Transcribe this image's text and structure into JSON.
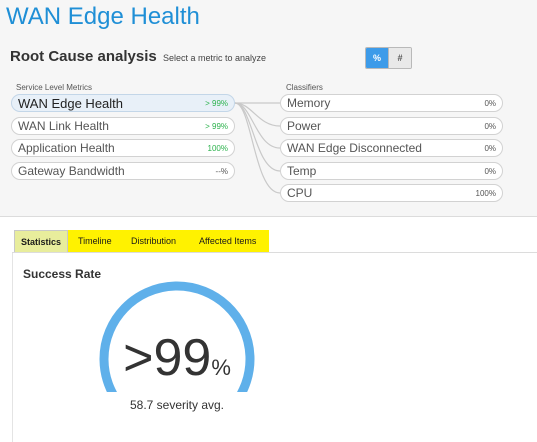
{
  "page": {
    "title": "WAN Edge Health"
  },
  "rca": {
    "title": "Root Cause analysis",
    "hint": "Select a metric to analyze",
    "toggle": {
      "percent_label": "%",
      "count_label": "#",
      "selected": "%"
    }
  },
  "slm": {
    "label": "Service Level Metrics",
    "items": [
      {
        "name": "WAN Edge Health",
        "value": "> 99%",
        "selected": true
      },
      {
        "name": "WAN Link Health",
        "value": "> 99%",
        "selected": false
      },
      {
        "name": "Application Health",
        "value": "100%",
        "selected": false
      },
      {
        "name": "Gateway Bandwidth",
        "value": "--%",
        "selected": false
      }
    ]
  },
  "classifiers": {
    "label": "Classifiers",
    "items": [
      {
        "name": "Memory",
        "value": "0%"
      },
      {
        "name": "Power",
        "value": "0%"
      },
      {
        "name": "WAN Edge Disconnected",
        "value": "0%"
      },
      {
        "name": "Temp",
        "value": "0%"
      },
      {
        "name": "CPU",
        "value": "100%"
      }
    ]
  },
  "tabs": [
    {
      "label": "Statistics",
      "active": true
    },
    {
      "label": "Timeline",
      "active": false
    },
    {
      "label": "Distribution",
      "active": false
    },
    {
      "label": "Affected Items",
      "active": false
    }
  ],
  "stats": {
    "title": "Success Rate",
    "value": ">99",
    "unit": "%",
    "severity": "58.7 severity avg.",
    "gauge_fraction": 0.99
  },
  "colors": {
    "accent": "#1f8fd6",
    "gauge": "#5fb0ea",
    "green": "#2bb24c",
    "tab_highlight": "#fff200"
  }
}
